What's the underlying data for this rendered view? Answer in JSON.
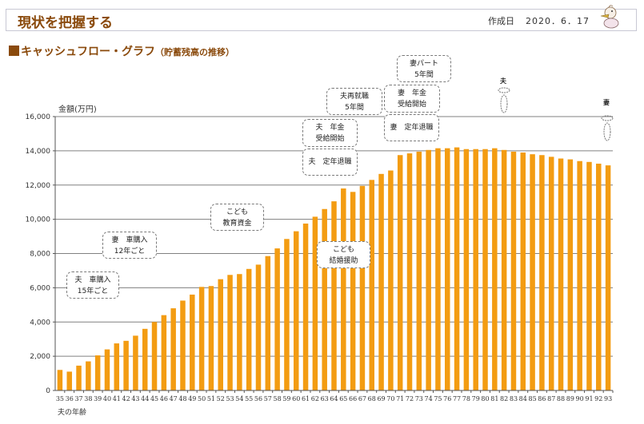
{
  "header": {
    "title": "現状を把握する",
    "created_label": "作成日",
    "created_date": "2020．6．17"
  },
  "section": {
    "title": "キャッシュフロー・グラフ",
    "subtitle": "（貯蓄残高の推移）"
  },
  "colors": {
    "bar": "#F39C12",
    "title": "#8A4A0C",
    "grid": "#808080"
  },
  "annotations": [
    {
      "id": "husband-car",
      "lines": [
        "夫　車購入",
        "15年ごと"
      ]
    },
    {
      "id": "wife-car",
      "lines": [
        "妻　車購入",
        "12年ごと"
      ]
    },
    {
      "id": "child-education",
      "lines": [
        "こども",
        "教育資金"
      ]
    },
    {
      "id": "child-wedding",
      "lines": [
        "こども",
        "結婚援助"
      ]
    },
    {
      "id": "husband-retire",
      "lines": [
        "夫　定年退職"
      ]
    },
    {
      "id": "husband-pension",
      "lines": [
        "夫　年金",
        "受給開始"
      ]
    },
    {
      "id": "husband-reemploy",
      "lines": [
        "夫再就職",
        "5年間"
      ]
    },
    {
      "id": "wife-pension",
      "lines": [
        "妻　年金",
        "受給開始"
      ]
    },
    {
      "id": "wife-part",
      "lines": [
        "妻パート",
        "5年間"
      ]
    },
    {
      "id": "wife-retire",
      "lines": [
        "妻　定年退職"
      ]
    }
  ],
  "markers": [
    {
      "id": "husband-end",
      "label": "夫"
    },
    {
      "id": "wife-end",
      "label": "妻"
    }
  ],
  "chart_data": {
    "type": "bar",
    "title": "キャッシュフロー・グラフ（貯蓄残高の推移）",
    "ylabel": "金額(万円)",
    "xlabel": "夫の年齢",
    "ylim": [
      0,
      16000
    ],
    "yticks": [
      0,
      2000,
      4000,
      6000,
      8000,
      10000,
      12000,
      14000,
      16000
    ],
    "ytick_labels": [
      "0",
      "2,000",
      "4,000",
      "6,000",
      "8,000",
      "10,000",
      "12,000",
      "14,000",
      "16,000"
    ],
    "grid": true,
    "categories": [
      "35",
      "36",
      "37",
      "38",
      "39",
      "40",
      "41",
      "42",
      "43",
      "44",
      "45",
      "46",
      "47",
      "48",
      "49",
      "50",
      "51",
      "52",
      "53",
      "54",
      "55",
      "56",
      "57",
      "58",
      "59",
      "60",
      "61",
      "62",
      "63",
      "64",
      "65",
      "66",
      "67",
      "68",
      "69",
      "70",
      "71",
      "72",
      "73",
      "74",
      "75",
      "76",
      "77",
      "78",
      "79",
      "80",
      "81",
      "82",
      "83",
      "84",
      "85",
      "86",
      "87",
      "88",
      "89",
      "90",
      "91",
      "92",
      "93"
    ],
    "values": [
      1200,
      1100,
      1450,
      1700,
      2050,
      2400,
      2750,
      2900,
      3200,
      3600,
      4000,
      4400,
      4800,
      5250,
      5600,
      6050,
      6100,
      6500,
      6750,
      6800,
      7100,
      7350,
      7850,
      8300,
      8850,
      9300,
      9750,
      10150,
      10600,
      11050,
      11800,
      11600,
      11950,
      12300,
      12650,
      12850,
      13750,
      13850,
      13950,
      14050,
      14150,
      14150,
      14200,
      14100,
      14100,
      14100,
      14150,
      14050,
      13950,
      13900,
      13800,
      13750,
      13650,
      13550,
      13500,
      13400,
      13350,
      13250,
      13150
    ]
  }
}
